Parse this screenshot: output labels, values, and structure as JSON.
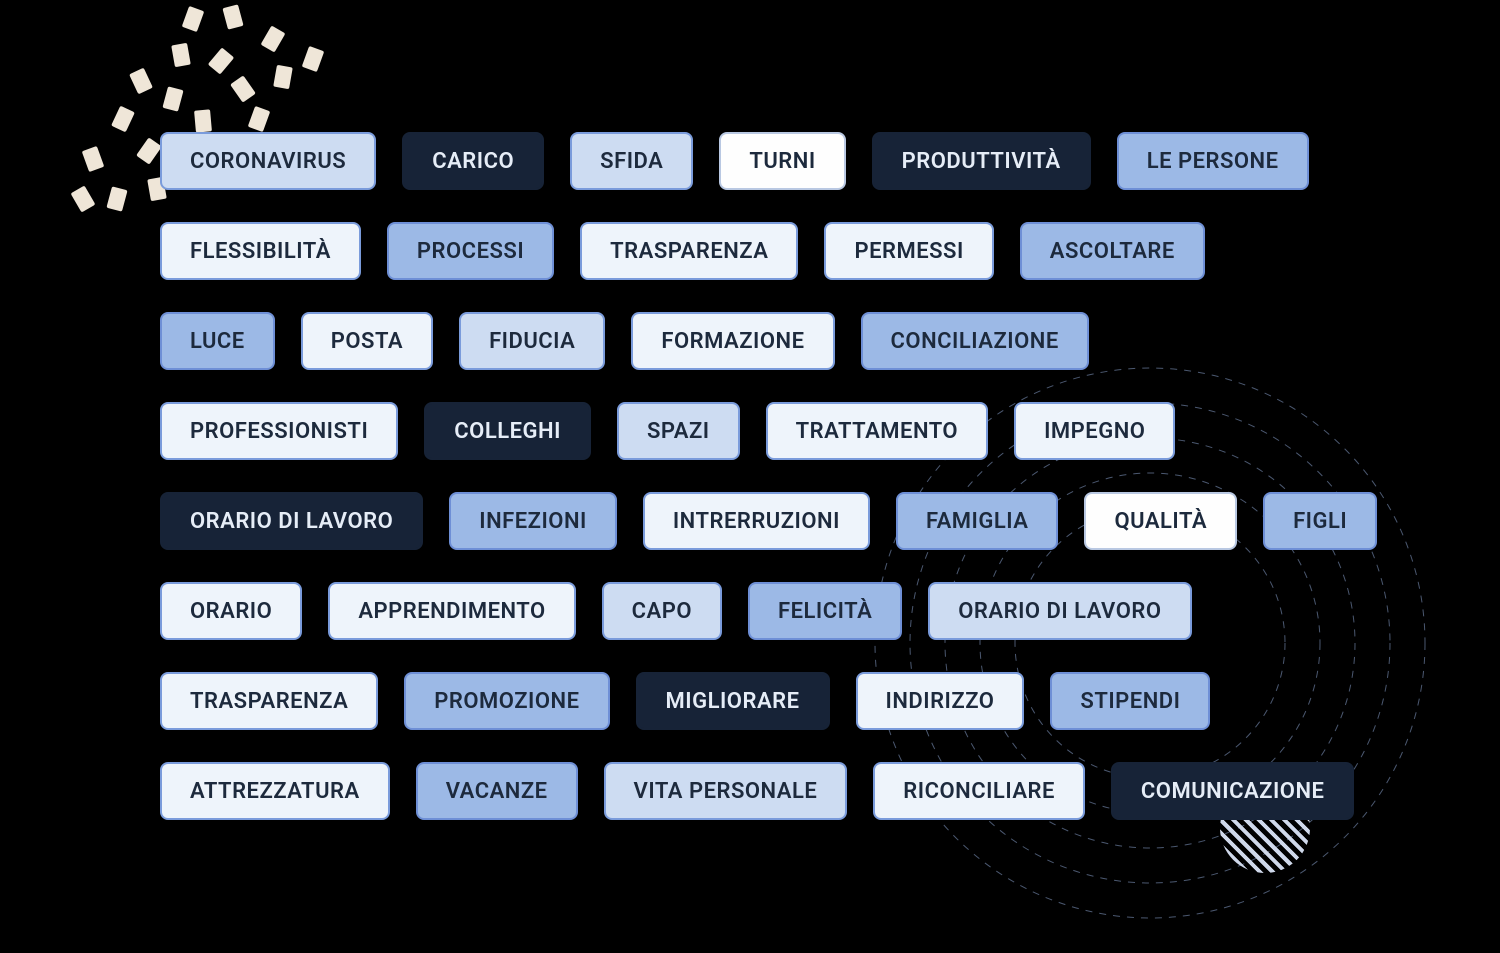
{
  "type": "infographic",
  "structure": "tag-cloud",
  "background_color": "#000000",
  "tag_styles": {
    "a": {
      "bg": "#eef4fb",
      "border": "#7a9bdb",
      "text": "#1d2a3d",
      "desc": "very light blue"
    },
    "b": {
      "bg": "#cddcf2",
      "border": "#7a9bdb",
      "text": "#1d2a3d",
      "desc": "light periwinkle"
    },
    "c": {
      "bg": "#9cb9e6",
      "border": "#6e8fd6",
      "text": "#1d2a3d",
      "desc": "mid blue"
    },
    "d": {
      "bg": "#172337",
      "border": "#172337",
      "text": "#e6edf7",
      "desc": "dark navy"
    },
    "w": {
      "bg": "#fefefe",
      "border": "#b9c8e2",
      "text": "#1d2a3d",
      "desc": "plain white"
    }
  },
  "tag_fontsize": 22,
  "tag_fontweight": 600,
  "tag_height": 54,
  "tag_border_radius": 8,
  "row_gap": 26,
  "row_vgap": 32,
  "decorations": {
    "confetti": {
      "color": "#efe6d8",
      "count": 18,
      "region": "top-left"
    },
    "rings": {
      "stroke": "#6b7ea0",
      "dash": "7 7",
      "count": 5,
      "region": "bottom-right"
    },
    "hatched_circle": {
      "region": "bottom-right",
      "pattern_color": "#cfd8ea"
    }
  },
  "rows": [
    [
      {
        "label": "CORONAVIRUS",
        "style": "b"
      },
      {
        "label": "CARICO",
        "style": "d"
      },
      {
        "label": "SFIDA",
        "style": "b"
      },
      {
        "label": "TURNI",
        "style": "w"
      },
      {
        "label": "PRODUTTIVITÀ",
        "style": "d"
      },
      {
        "label": "LE PERSONE",
        "style": "c"
      }
    ],
    [
      {
        "label": "FLESSIBILITÀ",
        "style": "a"
      },
      {
        "label": "PROCESSI",
        "style": "c"
      },
      {
        "label": "TRASPARENZA",
        "style": "a"
      },
      {
        "label": "PERMESSI",
        "style": "a"
      },
      {
        "label": "ASCOLTARE",
        "style": "c"
      }
    ],
    [
      {
        "label": "LUCE",
        "style": "c"
      },
      {
        "label": "POSTA",
        "style": "a"
      },
      {
        "label": "FIDUCIA",
        "style": "b"
      },
      {
        "label": "FORMAZIONE",
        "style": "a"
      },
      {
        "label": "CONCILIAZIONE",
        "style": "c"
      }
    ],
    [
      {
        "label": "PROFESSIONISTI",
        "style": "a"
      },
      {
        "label": "COLLEGHI",
        "style": "d"
      },
      {
        "label": "SPAZI",
        "style": "b"
      },
      {
        "label": "TRATTAMENTO",
        "style": "a"
      },
      {
        "label": "IMPEGNO",
        "style": "a"
      }
    ],
    [
      {
        "label": "ORARIO DI LAVORO",
        "style": "d"
      },
      {
        "label": "INFEZIONI",
        "style": "c"
      },
      {
        "label": "INTRERRUZIONI",
        "style": "a"
      },
      {
        "label": "FAMIGLIA",
        "style": "c"
      },
      {
        "label": "QUALITÀ",
        "style": "w"
      },
      {
        "label": "FIGLI",
        "style": "c"
      }
    ],
    [
      {
        "label": "ORARIO",
        "style": "a"
      },
      {
        "label": "APPRENDIMENTO",
        "style": "a"
      },
      {
        "label": "CAPO",
        "style": "b"
      },
      {
        "label": "FELICITÀ",
        "style": "c"
      },
      {
        "label": "ORARIO DI LAVORO",
        "style": "b"
      }
    ],
    [
      {
        "label": "TRASPARENZA",
        "style": "a"
      },
      {
        "label": "PROMOZIONE",
        "style": "c"
      },
      {
        "label": "MIGLIORARE",
        "style": "d"
      },
      {
        "label": "INDIRIZZO",
        "style": "a"
      },
      {
        "label": "STIPENDI",
        "style": "c"
      }
    ],
    [
      {
        "label": "ATTREZZATURA",
        "style": "a"
      },
      {
        "label": "VACANZE",
        "style": "c"
      },
      {
        "label": "VITA PERSONALE",
        "style": "b"
      },
      {
        "label": "RICONCILIARE",
        "style": "a"
      },
      {
        "label": "COMUNICAZIONE",
        "style": "d"
      }
    ]
  ]
}
